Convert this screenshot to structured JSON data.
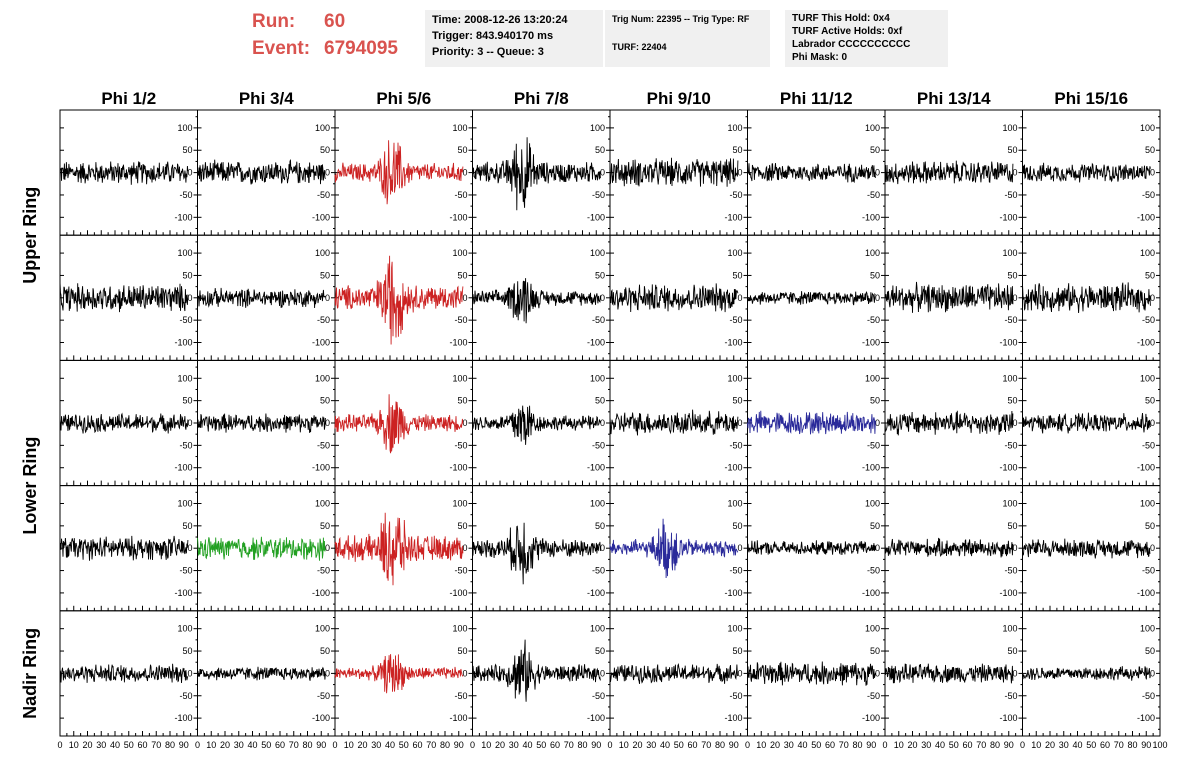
{
  "header": {
    "run_label": "Run:",
    "run_value": "60",
    "event_label": "Event:",
    "event_value": "6794095"
  },
  "info_time": {
    "lines": [
      "Time: 2008-12-26 13:20:24",
      "Trigger: 843.940170 ms",
      "Priority: 3 -- Queue: 3"
    ]
  },
  "info_trig": {
    "line1": "Trig Num: 22395 -- Trig Type: RF",
    "line2": "TURF: 22404"
  },
  "info_turf": {
    "lines": [
      "TURF This Hold: 0x4",
      "TURF Active Holds: 0xf",
      "Labrador CCCCCCCCCC",
      "Phi Mask: 0"
    ]
  },
  "colors": {
    "default": "#000000",
    "red": "#cc2222",
    "green": "#22a022",
    "blue": "#2a2a9a",
    "accent_text": "#d9534f"
  },
  "chart_data": {
    "type": "line",
    "columns": [
      "Phi 1/2",
      "Phi 3/4",
      "Phi 5/6",
      "Phi 7/8",
      "Phi 9/10",
      "Phi 11/12",
      "Phi 13/14",
      "Phi 15/16"
    ],
    "rows": [
      "Upper Ring",
      "Upper Ring",
      "Lower Ring",
      "Lower Ring",
      "Nadir Ring"
    ],
    "ring_labels": [
      "Upper Ring",
      "Lower Ring",
      "Nadir Ring"
    ],
    "ylim": [
      -140,
      140
    ],
    "xlim": [
      0,
      100
    ],
    "yticks": [
      100,
      50,
      0,
      -50,
      -100
    ],
    "xticks": [
      0,
      10,
      20,
      30,
      40,
      50,
      60,
      70,
      80,
      90,
      100
    ],
    "trace_xrange": [
      0,
      93
    ],
    "panel_colors": [
      [
        "default",
        "default",
        "red",
        "default",
        "default",
        "default",
        "default",
        "default"
      ],
      [
        "default",
        "default",
        "red",
        "default",
        "default",
        "default",
        "default",
        "default"
      ],
      [
        "default",
        "default",
        "red",
        "default",
        "default",
        "blue",
        "default",
        "default"
      ],
      [
        "default",
        "green",
        "red",
        "default",
        "blue",
        "default",
        "default",
        "default"
      ],
      [
        "default",
        "default",
        "red",
        "default",
        "default",
        "default",
        "default",
        "default"
      ]
    ],
    "panel_amplitudes": [
      [
        25,
        25,
        45,
        50,
        30,
        20,
        25,
        20
      ],
      [
        30,
        20,
        60,
        35,
        30,
        15,
        30,
        30
      ],
      [
        20,
        20,
        40,
        35,
        25,
        25,
        25,
        20
      ],
      [
        25,
        25,
        60,
        45,
        40,
        15,
        20,
        20
      ],
      [
        20,
        15,
        30,
        40,
        20,
        25,
        20,
        15
      ]
    ]
  }
}
